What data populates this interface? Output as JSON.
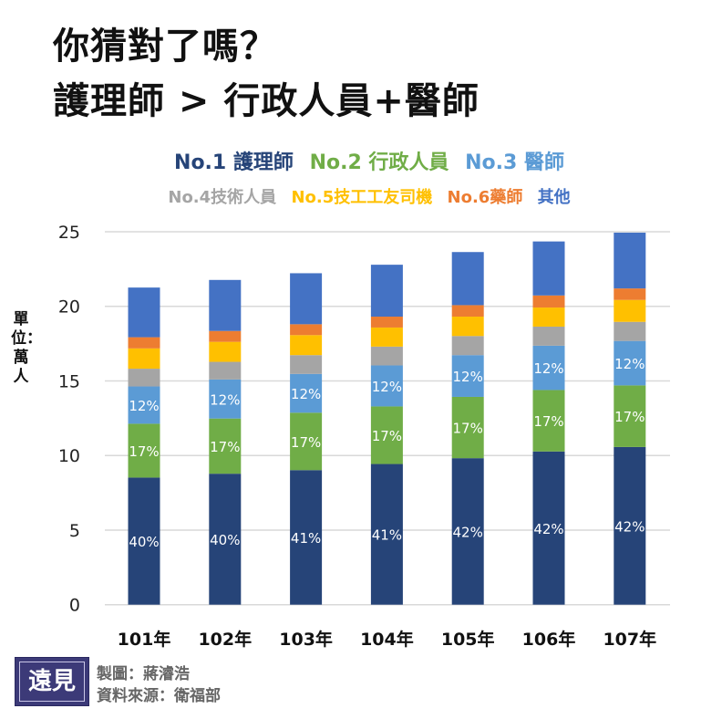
{
  "title_line1": "你猜對了嗎？",
  "title_line2": "護理師 > 行政人員+醫師",
  "logo_text": "遠見",
  "credits": {
    "chart_by": "製圖：蔣濬浩",
    "source": "資料來源：衛福部"
  },
  "chart_data": {
    "type": "stacked-bar",
    "title": "",
    "ylabel": "單位：萬人",
    "xlabel": "",
    "ylim": [
      0,
      25
    ],
    "yticks": [
      0,
      5,
      10,
      15,
      20,
      25
    ],
    "grid": true,
    "legend_position": "top",
    "categories": [
      "101年",
      "102年",
      "103年",
      "104年",
      "105年",
      "106年",
      "107年"
    ],
    "series": [
      {
        "name": "No.1 護理師",
        "color": "#264478",
        "values": [
          8.52,
          8.78,
          9.02,
          9.43,
          9.82,
          10.27,
          10.57
        ],
        "labels": [
          "40%",
          "40%",
          "41%",
          "41%",
          "42%",
          "42%",
          "42%"
        ]
      },
      {
        "name": "No.2 行政人員",
        "color": "#70ad47",
        "values": [
          3.61,
          3.7,
          3.85,
          3.86,
          4.11,
          4.12,
          4.13
        ],
        "labels": [
          "17%",
          "17%",
          "17%",
          "17%",
          "17%",
          "17%",
          "17%"
        ]
      },
      {
        "name": "No.3 醫師",
        "color": "#5b9bd5",
        "values": [
          2.5,
          2.62,
          2.6,
          2.75,
          2.8,
          2.97,
          2.98
        ],
        "labels": [
          "12%",
          "12%",
          "12%",
          "12%",
          "12%",
          "12%",
          "12%"
        ]
      },
      {
        "name": "No.4技術人員",
        "color": "#a5a5a5",
        "values": [
          1.19,
          1.18,
          1.26,
          1.26,
          1.28,
          1.28,
          1.28
        ]
      },
      {
        "name": "No.5技工工友司機",
        "color": "#ffc000",
        "values": [
          1.36,
          1.34,
          1.34,
          1.28,
          1.3,
          1.28,
          1.47
        ]
      },
      {
        "name": "No.6藥師",
        "color": "#ed7d31",
        "values": [
          0.75,
          0.73,
          0.73,
          0.73,
          0.77,
          0.81,
          0.77
        ]
      },
      {
        "name": "其他",
        "color": "#4472c4",
        "values": [
          3.33,
          3.42,
          3.42,
          3.48,
          3.56,
          3.62,
          3.74
        ]
      }
    ]
  }
}
